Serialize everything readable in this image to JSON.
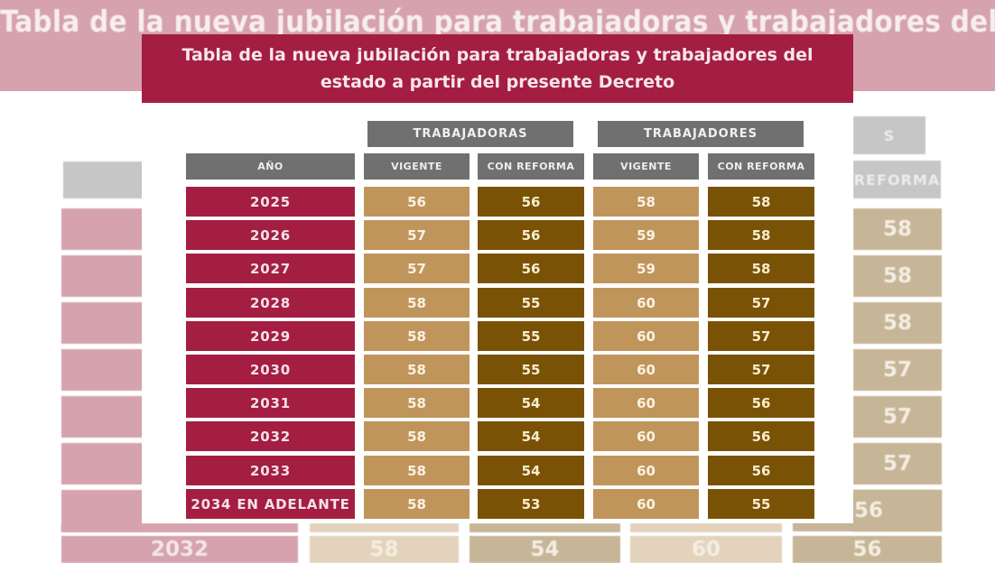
{
  "title": {
    "line1": "Tabla de la nueva jubilación para trabajadoras y trabajadores del",
    "line2": "estado a partir del presente Decreto"
  },
  "background": {
    "title": "Tabla de la nueva jubilación para trabajadoras y trabajadores del",
    "header_fragment_group": "S",
    "header_fragment_sub": "REFORMA",
    "right_column_values": [
      "58",
      "58",
      "58",
      "57",
      "57",
      "57",
      "56",
      "56"
    ],
    "bottom_row": {
      "year": "2032",
      "values": [
        "58",
        "54",
        "60",
        "56"
      ]
    }
  },
  "table": {
    "groups": [
      "TRABAJADORAS",
      "TRABAJADORES"
    ],
    "columns": [
      "AÑO",
      "VIGENTE",
      "CON REFORMA",
      "VIGENTE",
      "CON REFORMA"
    ],
    "rows": [
      {
        "year": "2025",
        "values": [
          "56",
          "56",
          "58",
          "58"
        ]
      },
      {
        "year": "2026",
        "values": [
          "57",
          "56",
          "59",
          "58"
        ]
      },
      {
        "year": "2027",
        "values": [
          "57",
          "56",
          "59",
          "58"
        ]
      },
      {
        "year": "2028",
        "values": [
          "58",
          "55",
          "60",
          "57"
        ]
      },
      {
        "year": "2029",
        "values": [
          "58",
          "55",
          "60",
          "57"
        ]
      },
      {
        "year": "2030",
        "values": [
          "58",
          "55",
          "60",
          "57"
        ]
      },
      {
        "year": "2031",
        "values": [
          "58",
          "54",
          "60",
          "56"
        ]
      },
      {
        "year": "2032",
        "values": [
          "58",
          "54",
          "60",
          "56"
        ]
      },
      {
        "year": "2033",
        "values": [
          "58",
          "54",
          "60",
          "56"
        ]
      },
      {
        "year": "2034 EN ADELANTE",
        "values": [
          "58",
          "53",
          "60",
          "55"
        ]
      }
    ]
  },
  "colors": {
    "title_band": "#a41e41",
    "header_gray": "#707070",
    "year_cell": "#a41e41",
    "vigente_cell": "#c0955c",
    "reforma_cell": "#7a5206",
    "background_band": "#d6a2ae"
  }
}
